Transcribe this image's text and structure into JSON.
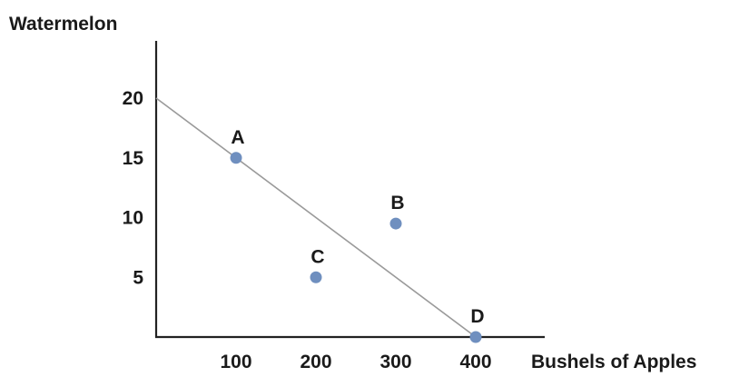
{
  "chart_data": {
    "type": "scatter",
    "ylabel": "Watermelon",
    "xlabel": "Bushels of Apples",
    "xlim": [
      0,
      400
    ],
    "ylim": [
      0,
      20
    ],
    "x_ticks": [
      100,
      200,
      300,
      400
    ],
    "y_ticks": [
      5,
      10,
      15,
      20
    ],
    "line": {
      "from": [
        0,
        20
      ],
      "to": [
        400,
        0
      ]
    },
    "points": [
      {
        "label": "A",
        "x": 100,
        "y": 15
      },
      {
        "label": "B",
        "x": 300,
        "y": 9.5
      },
      {
        "label": "C",
        "x": 200,
        "y": 5
      },
      {
        "label": "D",
        "x": 400,
        "y": 0
      }
    ],
    "colors": {
      "point": "#6f8fbf",
      "line": "#9a9a9a",
      "axis": "#222222"
    }
  }
}
